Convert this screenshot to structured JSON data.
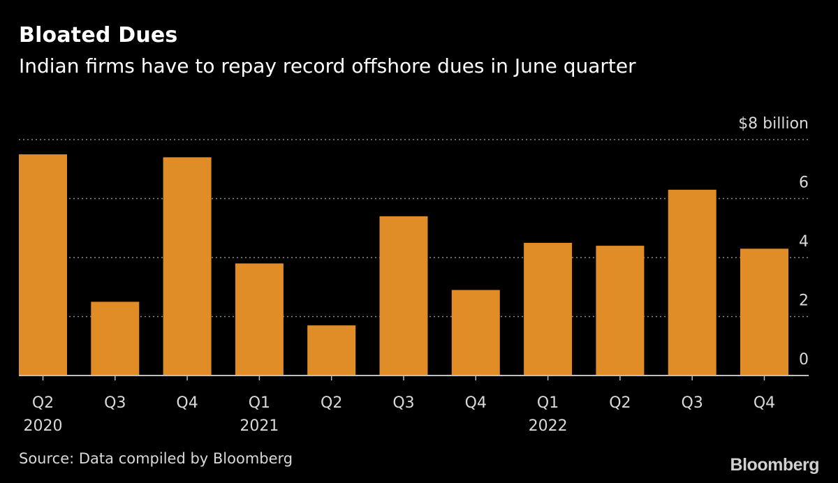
{
  "header": {
    "title": "Bloated Dues",
    "subtitle": "Indian firms have to repay record offshore dues in June quarter"
  },
  "footer": {
    "source": "Source: Data compiled by Bloomberg",
    "brand": "Bloomberg"
  },
  "colors": {
    "bar": "#e08d27",
    "grid": "#8c8c8c",
    "baseline": "#bfbfbf",
    "text": "#d9d9d9"
  },
  "chart_data": {
    "type": "bar",
    "title": "Bloated Dues",
    "subtitle": "Indian firms have to repay record offshore dues in June quarter",
    "xlabel": "",
    "ylabel": "",
    "unit_label": "$8 billion",
    "ylim": [
      0,
      8
    ],
    "yticks": [
      {
        "value": 0,
        "label": "0"
      },
      {
        "value": 2,
        "label": "2"
      },
      {
        "value": 4,
        "label": "4"
      },
      {
        "value": 6,
        "label": "6"
      },
      {
        "value": 8,
        "label": "$8 billion"
      }
    ],
    "grid": true,
    "categories": [
      "Q2",
      "Q3",
      "Q4",
      "Q1",
      "Q2",
      "Q3",
      "Q4",
      "Q1",
      "Q2",
      "Q3",
      "Q4"
    ],
    "years": [
      "2020",
      "",
      "",
      "2021",
      "",
      "",
      "",
      "2022",
      "",
      "",
      ""
    ],
    "values": [
      7.5,
      2.5,
      7.4,
      3.8,
      1.7,
      5.4,
      2.9,
      4.5,
      4.4,
      6.3,
      4.3
    ]
  }
}
